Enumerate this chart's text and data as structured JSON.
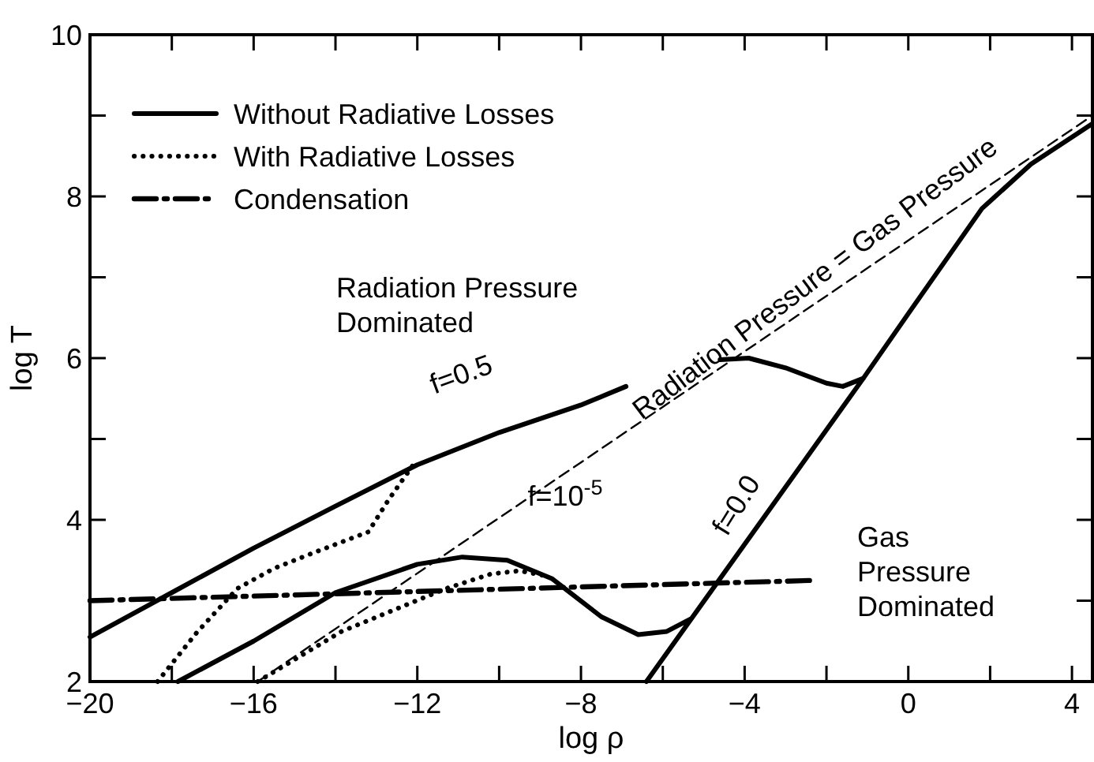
{
  "chart_data": {
    "type": "line",
    "xlabel": "log ρ",
    "ylabel": "log T",
    "xlim": [
      -20,
      4.5
    ],
    "ylim": [
      2,
      10
    ],
    "xticks": [
      -20,
      {
        "value": -18,
        "label": null
      },
      -16,
      {
        "value": -14,
        "label": null
      },
      -12,
      {
        "value": -10,
        "label": null
      },
      -8,
      {
        "value": -6,
        "label": null
      },
      -4,
      {
        "value": -2,
        "label": null
      },
      0,
      {
        "value": 2,
        "label": null
      },
      4
    ],
    "yticks": [
      2,
      {
        "value": 3,
        "label": null
      },
      4,
      {
        "value": 5,
        "label": null
      },
      6,
      {
        "value": 7,
        "label": null
      },
      8,
      {
        "value": 9,
        "label": null
      },
      10
    ],
    "grid": false,
    "legend": "top left",
    "series": [
      {
        "name": "Without Radiative Losses",
        "color": "#000000",
        "line_style": "solid",
        "x": [
          -20,
          -18,
          -16,
          -14,
          -12,
          -10,
          -8,
          -6.9,
          null,
          -17.85,
          -16,
          -14,
          -12,
          -10.9,
          -9.8,
          -8.7,
          -7.5,
          -6.6,
          -5.9,
          -5.3,
          null,
          -4.6,
          -3.9,
          -3,
          -2,
          -1.6,
          -1.1,
          null,
          -6.4,
          -1.1,
          0,
          1.8,
          3,
          4.5
        ],
        "values": [
          2.55,
          3.1,
          3.65,
          4.17,
          4.68,
          5.08,
          5.42,
          5.65,
          null,
          2,
          2.5,
          3.1,
          3.45,
          3.54,
          3.5,
          3.27,
          2.8,
          2.58,
          2.62,
          2.78,
          null,
          5.98,
          6.0,
          5.88,
          5.69,
          5.65,
          5.75,
          null,
          2,
          5.75,
          6.55,
          7.85,
          8.4,
          8.9
        ]
      },
      {
        "name": "With Radiative Losses",
        "color": "#000000",
        "line_style": "dotted",
        "x": [
          -18.35,
          -17.4,
          -16.4,
          -15.5,
          -14.5,
          -13.2,
          -12.7,
          -12.1,
          null,
          -15.9,
          -13.85,
          -11.3,
          -10.2,
          -9.5,
          -8.8
        ],
        "values": [
          2,
          2.6,
          3.15,
          3.4,
          3.6,
          3.85,
          4.25,
          4.68,
          null,
          2,
          2.62,
          3.15,
          3.33,
          3.37,
          3.3
        ]
      },
      {
        "name": "Condensation",
        "color": "#000000",
        "line_style": "dashdot",
        "x": [
          -20,
          -2.4
        ],
        "values": [
          3.0,
          3.25
        ]
      },
      {
        "color": "#000000",
        "line_style": "dashed",
        "x": [
          -15.9,
          4.5
        ],
        "values": [
          2,
          9.0
        ]
      }
    ],
    "annotations": [
      "f=0.5",
      "f=10$^{-5}$",
      "f=0.0",
      "Radiation Pressure = Gas Pressure",
      "Radiation Pressure\nDominated",
      "Gas\nPressure\nDominated"
    ]
  }
}
